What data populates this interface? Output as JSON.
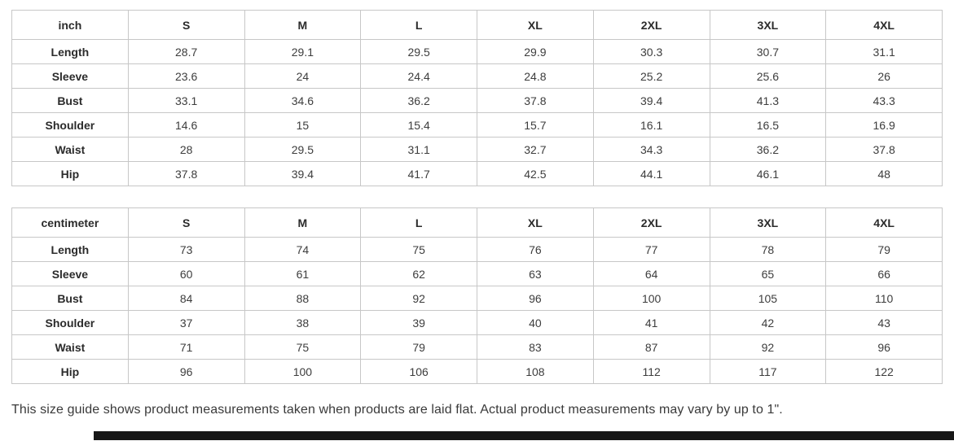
{
  "size_guide": {
    "tables": [
      {
        "id": "table-inch",
        "unit_label": "inch",
        "columns": [
          "S",
          "M",
          "L",
          "XL",
          "2XL",
          "3XL",
          "4XL"
        ],
        "rows": [
          {
            "label": "Length",
            "values": [
              "28.7",
              "29.1",
              "29.5",
              "29.9",
              "30.3",
              "30.7",
              "31.1"
            ]
          },
          {
            "label": "Sleeve",
            "values": [
              "23.6",
              "24",
              "24.4",
              "24.8",
              "25.2",
              "25.6",
              "26"
            ]
          },
          {
            "label": "Bust",
            "values": [
              "33.1",
              "34.6",
              "36.2",
              "37.8",
              "39.4",
              "41.3",
              "43.3"
            ]
          },
          {
            "label": "Shoulder",
            "values": [
              "14.6",
              "15",
              "15.4",
              "15.7",
              "16.1",
              "16.5",
              "16.9"
            ]
          },
          {
            "label": "Waist",
            "values": [
              "28",
              "29.5",
              "31.1",
              "32.7",
              "34.3",
              "36.2",
              "37.8"
            ]
          },
          {
            "label": "Hip",
            "values": [
              "37.8",
              "39.4",
              "41.7",
              "42.5",
              "44.1",
              "46.1",
              "48"
            ]
          }
        ]
      },
      {
        "id": "table-cm",
        "unit_label": "centimeter",
        "columns": [
          "S",
          "M",
          "L",
          "XL",
          "2XL",
          "3XL",
          "4XL"
        ],
        "rows": [
          {
            "label": "Length",
            "values": [
              "73",
              "74",
              "75",
              "76",
              "77",
              "78",
              "79"
            ]
          },
          {
            "label": "Sleeve",
            "values": [
              "60",
              "61",
              "62",
              "63",
              "64",
              "65",
              "66"
            ]
          },
          {
            "label": "Bust",
            "values": [
              "84",
              "88",
              "92",
              "96",
              "100",
              "105",
              "110"
            ]
          },
          {
            "label": "Shoulder",
            "values": [
              "37",
              "38",
              "39",
              "40",
              "41",
              "42",
              "43"
            ]
          },
          {
            "label": "Waist",
            "values": [
              "71",
              "75",
              "79",
              "83",
              "87",
              "92",
              "96"
            ]
          },
          {
            "label": "Hip",
            "values": [
              "96",
              "100",
              "106",
              "108",
              "112",
              "117",
              "122"
            ]
          }
        ]
      }
    ],
    "note": "This size guide shows product measurements taken when products are laid flat. Actual product measurements may vary by up to 1\".",
    "colors": {
      "border": "#c7c7c7",
      "text": "#3a3a3a",
      "bottom_bar": "#171717"
    }
  }
}
